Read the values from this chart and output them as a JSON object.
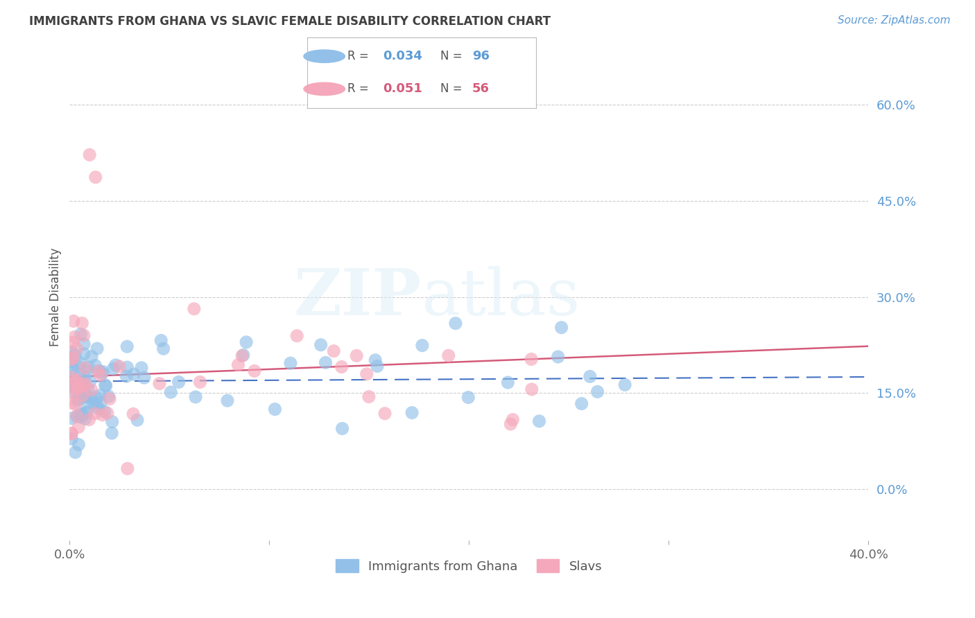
{
  "title": "IMMIGRANTS FROM GHANA VS SLAVIC FEMALE DISABILITY CORRELATION CHART",
  "source": "Source: ZipAtlas.com",
  "ylabel": "Female Disability",
  "xlim": [
    0.0,
    0.4
  ],
  "ylim": [
    -0.08,
    0.68
  ],
  "yticks": [
    0.0,
    0.15,
    0.3,
    0.45,
    0.6
  ],
  "xticks": [
    0.0,
    0.1,
    0.2,
    0.3,
    0.4
  ],
  "legend_blue_r": "0.034",
  "legend_blue_n": "96",
  "legend_pink_r": "0.051",
  "legend_pink_n": "56",
  "blue_color": "#92c0e8",
  "pink_color": "#f5a8bb",
  "trendline_blue_color": "#4472c4",
  "trendline_pink_color": "#d45a7a",
  "background_color": "#ffffff",
  "grid_color": "#cccccc",
  "axis_label_color": "#5b9bd5",
  "title_color": "#404040",
  "blue_trend_x": [
    0.0,
    0.4
  ],
  "blue_trend_y": [
    0.168,
    0.175
  ],
  "pink_trend_x": [
    0.0,
    0.4
  ],
  "pink_trend_y": [
    0.175,
    0.223
  ]
}
